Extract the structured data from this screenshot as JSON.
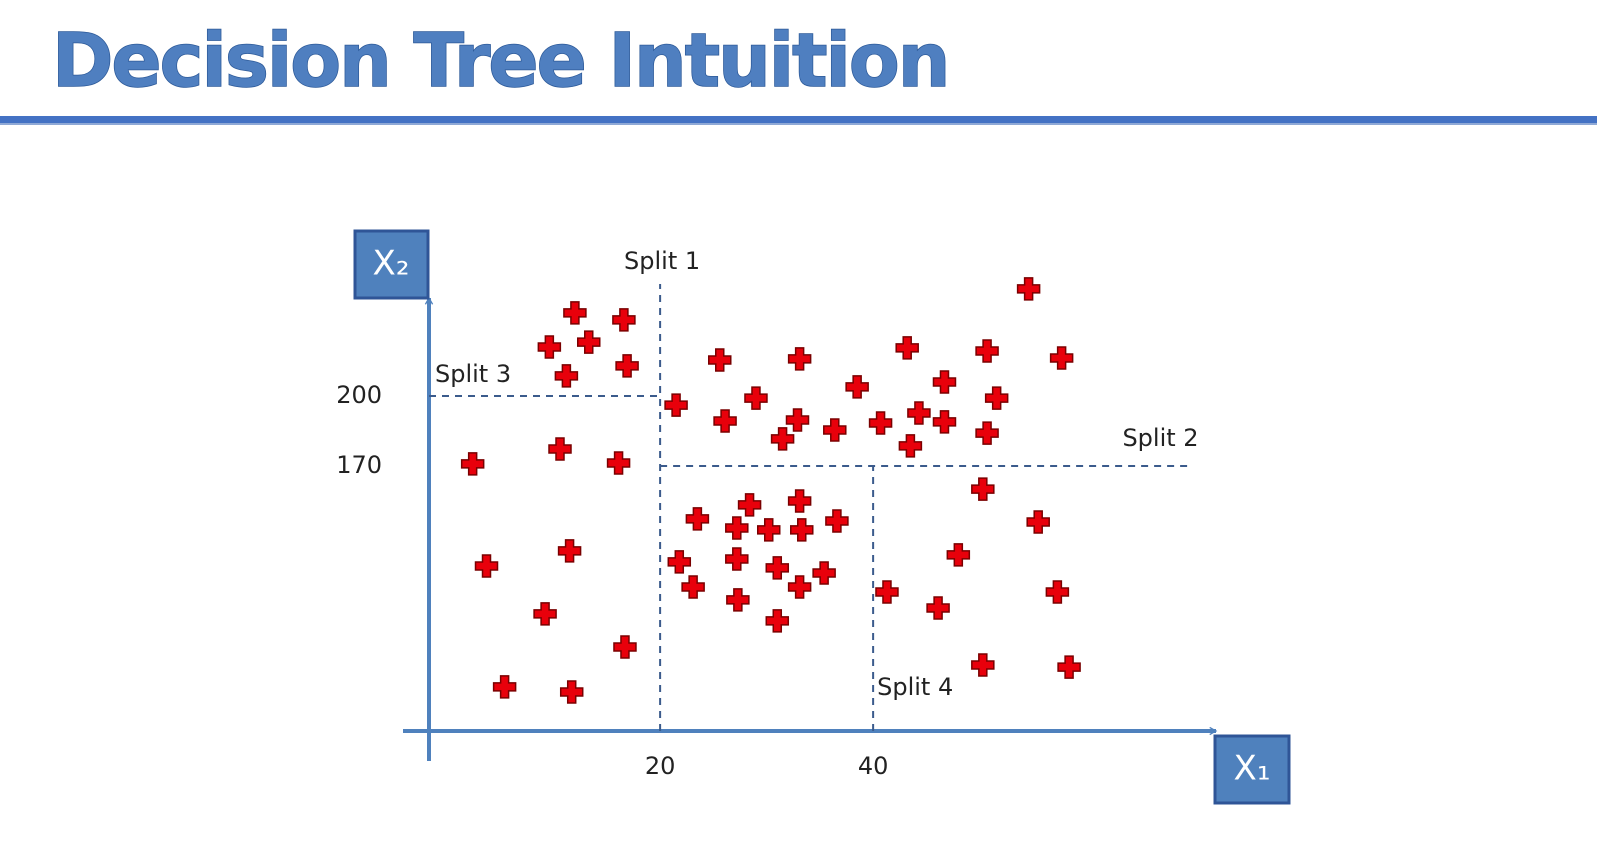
{
  "title": "Decision Tree Intuition",
  "chart_data": {
    "type": "scatter",
    "x_label": "X₁",
    "y_label": "X₂",
    "color": "#e8000b",
    "xlim": [
      -1.7,
      72.1
    ],
    "ylim": [
      56.4,
      248
    ],
    "xticks": [
      20,
      40
    ],
    "yticks": [
      170,
      200
    ],
    "x": [
      12.0,
      16.6,
      9.6,
      13.3,
      11.2,
      16.9,
      2.4,
      10.6,
      16.1,
      3.7,
      11.5,
      9.2,
      16.7,
      5.4,
      11.7,
      54.6,
      25.6,
      33.1,
      43.2,
      50.7,
      57.7,
      38.5,
      46.7,
      29.0,
      51.6,
      21.5,
      26.1,
      32.9,
      36.4,
      40.7,
      44.3,
      46.7,
      31.5,
      43.5,
      50.7,
      28.4,
      33.1,
      23.5,
      27.2,
      30.2,
      33.3,
      36.6,
      21.8,
      27.2,
      31.0,
      35.4,
      23.1,
      33.1,
      27.3,
      31.0,
      50.3,
      55.5,
      48.0,
      41.3,
      57.3,
      46.1,
      50.3,
      58.4
    ],
    "values": [
      235.6,
      232.6,
      221.0,
      223.1,
      208.6,
      212.9,
      170.9,
      177.3,
      171.3,
      127.1,
      133.6,
      106.6,
      92.4,
      75.3,
      73.1,
      245.9,
      215.4,
      215.9,
      220.6,
      219.3,
      216.3,
      203.9,
      206.0,
      199.1,
      199.1,
      196.1,
      189.3,
      189.7,
      185.4,
      188.4,
      192.7,
      188.9,
      181.6,
      178.6,
      184.1,
      153.3,
      155.0,
      147.3,
      143.4,
      142.6,
      142.6,
      146.4,
      128.9,
      130.1,
      126.3,
      124.1,
      118.1,
      118.1,
      112.6,
      103.6,
      160.1,
      146.0,
      131.9,
      116.0,
      116.0,
      109.1,
      84.7,
      83.8
    ],
    "splits": [
      {
        "label": "Split 1",
        "axis": "x",
        "value": 20,
        "from": 56.4,
        "to": 248
      },
      {
        "label": "Split 2",
        "axis": "y",
        "value": 170,
        "from": 20,
        "to": 69.8
      },
      {
        "label": "Split 3",
        "axis": "y",
        "value": 200,
        "from": -1.7,
        "to": 20
      },
      {
        "label": "Split 4",
        "axis": "x",
        "value": 40,
        "from": 56.4,
        "to": 170
      }
    ]
  }
}
